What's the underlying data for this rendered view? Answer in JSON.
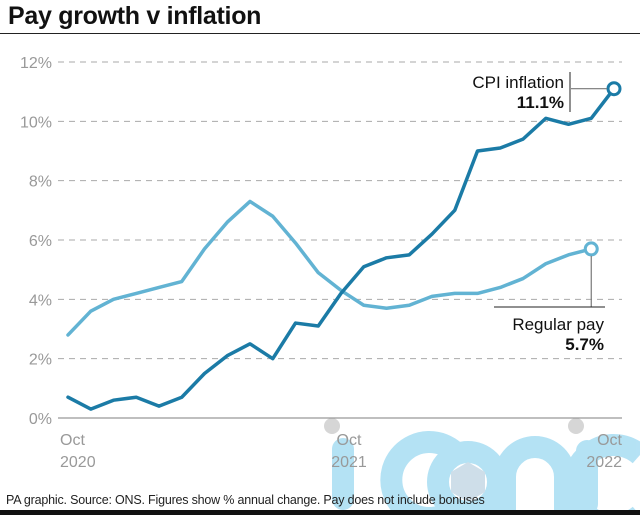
{
  "chart_data": {
    "type": "line",
    "title": "Pay growth v inflation",
    "xlabel": "",
    "ylabel": "",
    "ylim": [
      0,
      12
    ],
    "yticks": [
      0,
      2,
      4,
      6,
      8,
      10,
      12
    ],
    "ytick_labels": [
      "0%",
      "2%",
      "4%",
      "6%",
      "8%",
      "10%",
      "12%"
    ],
    "grid": true,
    "x_month_index_range": [
      0,
      24
    ],
    "xticks": [
      {
        "index": 0,
        "line1": "Oct",
        "line2": "2020"
      },
      {
        "index": 12,
        "line1": "Oct",
        "line2": "2021"
      },
      {
        "index": 24,
        "line1": "Oct",
        "line2": "2022"
      }
    ],
    "series": [
      {
        "name": "CPI inflation",
        "color": "#1b7ba6",
        "start_index": 0,
        "values": [
          0.7,
          0.3,
          0.6,
          0.7,
          0.4,
          0.7,
          1.5,
          2.1,
          2.5,
          2.0,
          3.2,
          3.1,
          4.2,
          5.1,
          5.4,
          5.5,
          6.2,
          7.0,
          9.0,
          9.1,
          9.4,
          10.1,
          9.9,
          10.1,
          11.1
        ],
        "label": "CPI inflation",
        "end_label": "11.1%"
      },
      {
        "name": "Regular pay",
        "color": "#62b3d3",
        "start_index": 0,
        "values": [
          2.8,
          3.6,
          4.0,
          4.2,
          4.4,
          4.6,
          5.7,
          6.6,
          7.3,
          6.8,
          5.9,
          4.9,
          4.3,
          3.8,
          3.7,
          3.8,
          4.1,
          4.2,
          4.2,
          4.4,
          4.7,
          5.2,
          5.5,
          5.7
        ],
        "label": "Regular pay",
        "end_label": "5.7%"
      }
    ],
    "annotations": [
      {
        "series": "CPI inflation",
        "text": "CPI inflation",
        "value_text": "11.1%",
        "placement": "top-right, left of endpoint"
      },
      {
        "series": "Regular pay",
        "text": "Regular pay",
        "value_text": "5.7%",
        "placement": "below endpoint"
      }
    ],
    "footer": "PA graphic. Source: ONS. Figures show % annual change. Pay does not include bonuses",
    "watermark": "iconic"
  }
}
